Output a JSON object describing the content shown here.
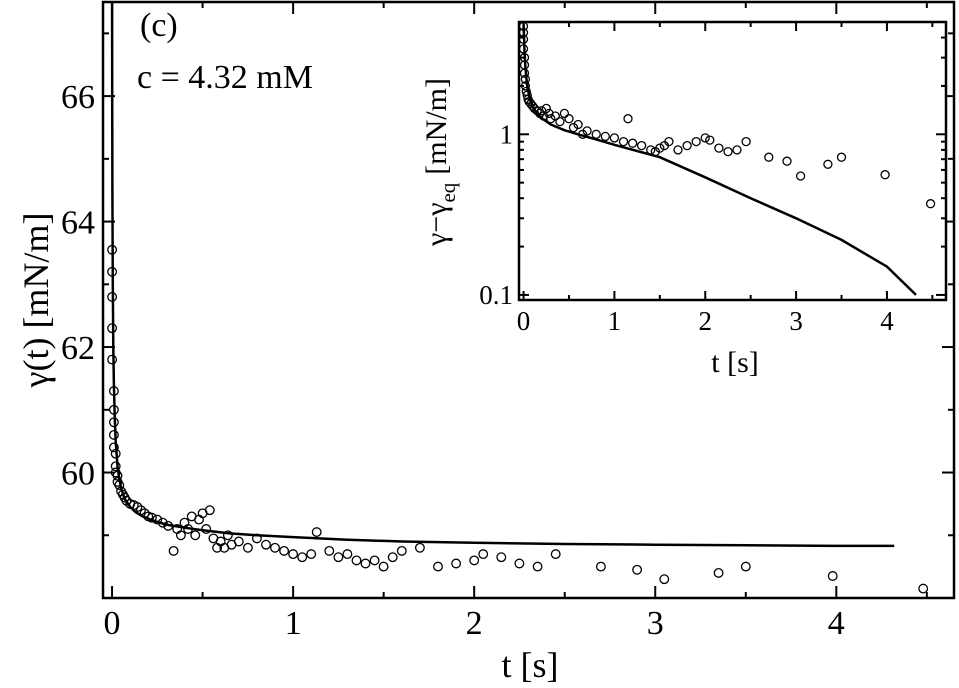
{
  "chart_data": [
    {
      "type": "scatter",
      "panel_label": "(c)",
      "annotation": "c = 4.32 mM",
      "xlabel": "t [s]",
      "ylabel": "γ(t) [mN/m]",
      "xlim": [
        -0.05,
        4.65
      ],
      "ylim": [
        58.0,
        67.5
      ],
      "xticks": [
        0,
        1,
        2,
        3,
        4
      ],
      "xtick_labels": [
        "0",
        "1",
        "2",
        "3",
        "4"
      ],
      "yticks": [
        60,
        62,
        64,
        66
      ],
      "ytick_labels": [
        "60",
        "62",
        "64",
        "66"
      ],
      "series": [
        {
          "name": "measured",
          "style": "open-circle",
          "x": [
            0.0,
            0.0,
            0.0,
            0.0,
            0.0,
            0.01,
            0.01,
            0.01,
            0.01,
            0.01,
            0.02,
            0.02,
            0.02,
            0.03,
            0.03,
            0.04,
            0.05,
            0.06,
            0.07,
            0.08,
            0.1,
            0.12,
            0.14,
            0.16,
            0.18,
            0.2,
            0.22,
            0.25,
            0.28,
            0.31,
            0.34,
            0.36,
            0.38,
            0.4,
            0.42,
            0.44,
            0.46,
            0.48,
            0.5,
            0.52,
            0.54,
            0.56,
            0.58,
            0.6,
            0.62,
            0.64,
            0.66,
            0.7,
            0.75,
            0.8,
            0.85,
            0.9,
            0.95,
            1.0,
            1.05,
            1.1,
            1.13,
            1.2,
            1.25,
            1.3,
            1.35,
            1.4,
            1.45,
            1.5,
            1.55,
            1.6,
            1.7,
            1.8,
            1.9,
            2.0,
            2.05,
            2.15,
            2.25,
            2.35,
            2.45,
            2.7,
            2.9,
            3.05,
            3.35,
            3.5,
            3.98,
            4.48
          ],
          "y": [
            63.55,
            63.2,
            62.8,
            62.3,
            61.8,
            61.3,
            61.0,
            60.8,
            60.6,
            60.4,
            60.3,
            60.1,
            60.0,
            59.95,
            59.85,
            59.8,
            59.7,
            59.65,
            59.6,
            59.55,
            59.5,
            59.48,
            59.45,
            59.4,
            59.35,
            59.3,
            59.28,
            59.25,
            59.2,
            59.15,
            58.75,
            59.1,
            59.0,
            59.2,
            59.1,
            59.3,
            59.0,
            59.25,
            59.35,
            59.1,
            59.4,
            58.95,
            58.8,
            58.9,
            58.8,
            59.0,
            58.85,
            58.9,
            58.8,
            58.95,
            58.85,
            58.8,
            58.75,
            58.7,
            58.65,
            58.7,
            59.05,
            58.75,
            58.65,
            58.7,
            58.6,
            58.55,
            58.6,
            58.5,
            58.65,
            58.75,
            58.8,
            58.5,
            58.55,
            58.6,
            58.7,
            58.65,
            58.55,
            58.5,
            58.7,
            58.5,
            58.45,
            58.3,
            58.4,
            58.5,
            58.35,
            58.15
          ]
        },
        {
          "name": "fit",
          "style": "solid-line",
          "x": [
            0.0,
            0.001,
            0.002,
            0.004,
            0.007,
            0.01,
            0.015,
            0.02,
            0.03,
            0.04,
            0.05,
            0.07,
            0.1,
            0.13,
            0.17,
            0.22,
            0.3,
            0.4,
            0.5,
            0.65,
            0.8,
            1.0,
            1.3,
            1.6,
            2.0,
            2.5,
            3.0,
            3.5,
            4.0,
            4.32
          ],
          "y": [
            67.5,
            66.0,
            64.5,
            63.0,
            62.0,
            61.4,
            60.85,
            60.5,
            60.1,
            59.9,
            59.75,
            59.58,
            59.45,
            59.37,
            59.3,
            59.24,
            59.17,
            59.12,
            59.08,
            59.03,
            59.0,
            58.97,
            58.93,
            58.9,
            58.88,
            58.86,
            58.85,
            58.84,
            58.83,
            58.83
          ]
        }
      ]
    },
    {
      "type": "scatter",
      "inset": true,
      "xlabel": "t [s]",
      "ylabel_main": "γ−γ",
      "ylabel_sub": "eq",
      "ylabel_units": "[mN/m]",
      "yscale": "log",
      "xlim": [
        -0.05,
        4.65
      ],
      "ylim": [
        0.093,
        5.0
      ],
      "xticks": [
        0,
        1,
        2,
        3,
        4
      ],
      "xtick_labels": [
        "0",
        "1",
        "2",
        "3",
        "4"
      ],
      "yticks": [
        0.1,
        1
      ],
      "ytick_labels": [
        "0.1",
        "1"
      ],
      "series": [
        {
          "name": "measured",
          "style": "open-circle",
          "x": [
            0.0,
            0.0,
            0.0,
            0.0,
            0.01,
            0.01,
            0.01,
            0.02,
            0.02,
            0.03,
            0.04,
            0.05,
            0.06,
            0.08,
            0.1,
            0.12,
            0.15,
            0.18,
            0.2,
            0.22,
            0.25,
            0.28,
            0.3,
            0.35,
            0.4,
            0.45,
            0.5,
            0.55,
            0.6,
            0.65,
            0.7,
            0.8,
            0.9,
            1.0,
            1.1,
            1.15,
            1.2,
            1.3,
            1.4,
            1.45,
            1.5,
            1.55,
            1.6,
            1.7,
            1.8,
            1.9,
            2.0,
            2.05,
            2.15,
            2.25,
            2.35,
            2.45,
            2.7,
            2.9,
            3.05,
            3.35,
            3.5,
            3.98,
            4.48
          ],
          "y": [
            4.7,
            4.3,
            3.9,
            3.4,
            3.0,
            2.7,
            2.4,
            2.2,
            2.0,
            1.85,
            1.75,
            1.65,
            1.6,
            1.55,
            1.5,
            1.45,
            1.4,
            1.35,
            1.4,
            1.3,
            1.45,
            1.35,
            1.25,
            1.3,
            1.2,
            1.35,
            1.25,
            1.1,
            1.15,
            1.0,
            1.05,
            1.0,
            0.97,
            0.95,
            0.9,
            1.25,
            0.88,
            0.85,
            0.8,
            0.78,
            0.82,
            0.85,
            0.9,
            0.8,
            0.85,
            0.9,
            0.95,
            0.92,
            0.82,
            0.78,
            0.8,
            0.9,
            0.72,
            0.68,
            0.55,
            0.65,
            0.72,
            0.56,
            0.37
          ]
        },
        {
          "name": "fit",
          "style": "solid-line",
          "x": [
            0.0,
            0.01,
            0.02,
            0.04,
            0.07,
            0.1,
            0.15,
            0.2,
            0.3,
            0.45,
            0.6,
            0.8,
            1.0,
            1.5,
            2.0,
            2.5,
            3.0,
            3.5,
            4.0,
            4.32
          ],
          "y": [
            5.0,
            3.3,
            2.6,
            2.0,
            1.65,
            1.48,
            1.34,
            1.26,
            1.15,
            1.06,
            1.0,
            0.93,
            0.86,
            0.72,
            0.54,
            0.4,
            0.3,
            0.22,
            0.15,
            0.1
          ]
        }
      ]
    }
  ]
}
